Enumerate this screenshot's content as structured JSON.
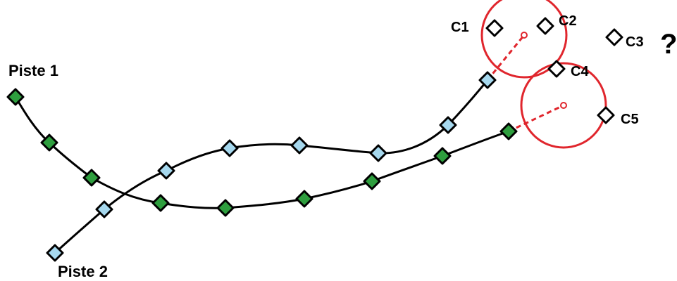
{
  "tracks": [
    {
      "label": "Piste 1",
      "marker_color": "#2e9e3e",
      "line_color": "#000000"
    },
    {
      "label": "Piste 2",
      "marker_color": "#a6d8ee",
      "line_color": "#000000"
    }
  ],
  "candidates": [
    {
      "label": "C1"
    },
    {
      "label": "C2"
    },
    {
      "label": "C3"
    },
    {
      "label": "C4"
    },
    {
      "label": "C5"
    }
  ],
  "question_mark": "?",
  "gate_color": "#e0262d"
}
